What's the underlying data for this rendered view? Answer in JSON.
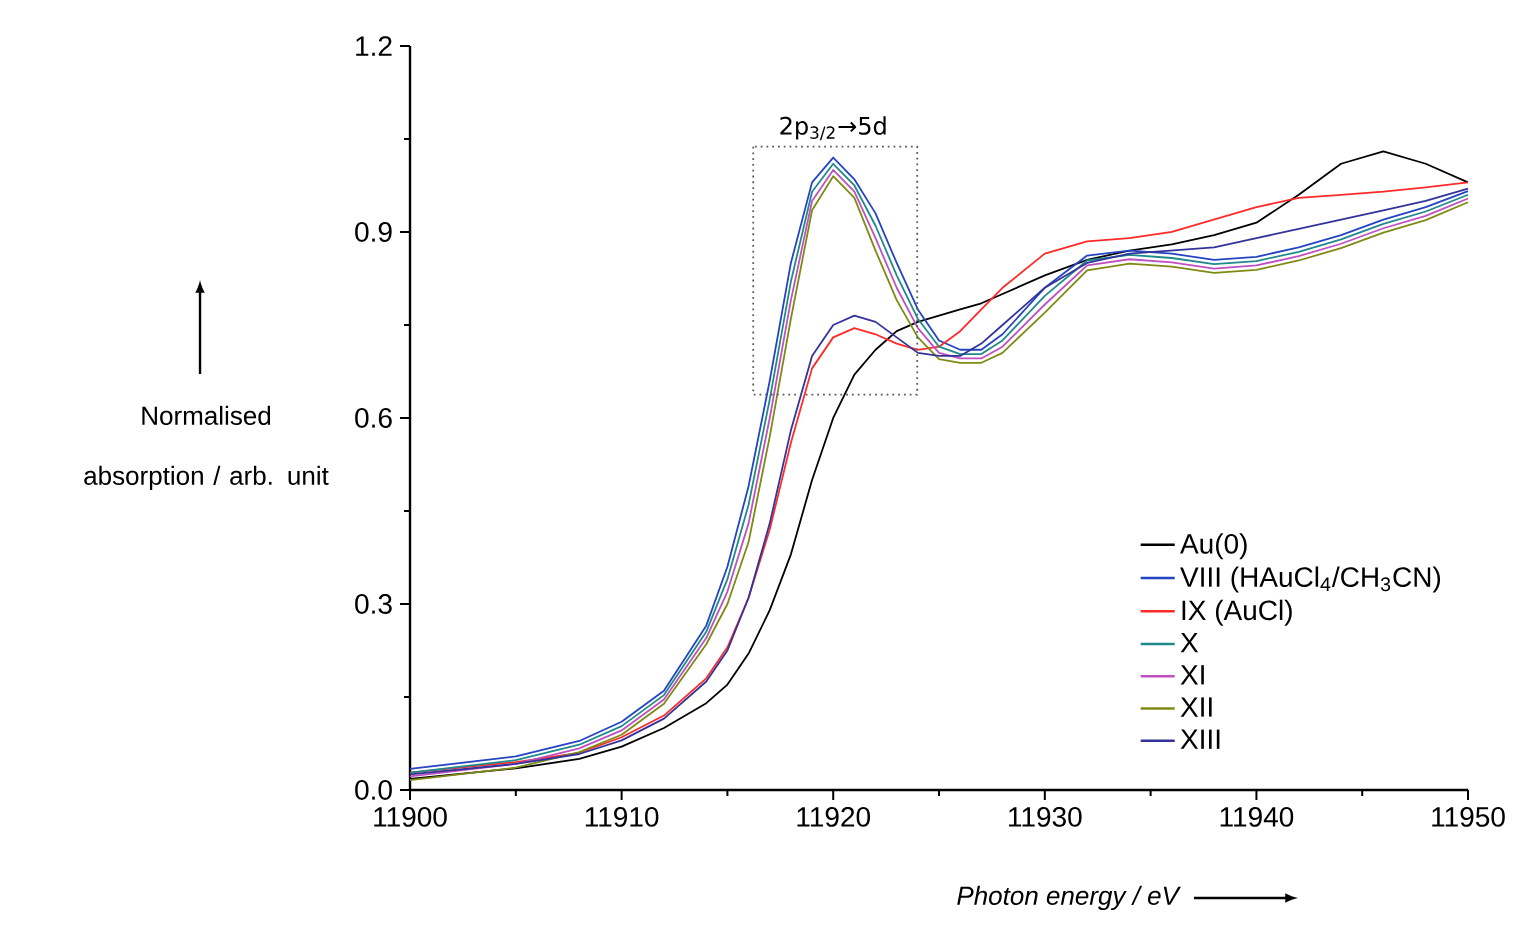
{
  "chart_data": {
    "type": "line",
    "xlabel": "Photon energy / eV",
    "ylabel": "Normalised absorption / arb. unit",
    "xlim": [
      11900,
      11950
    ],
    "ylim": [
      0,
      1.2
    ],
    "xticks": [
      11900,
      11910,
      11920,
      11930,
      11940,
      11950
    ],
    "yticks": [
      {
        "value": 0,
        "label": "0.0"
      },
      0.3,
      0.6,
      0.9,
      1.2
    ],
    "legend": "bottom right",
    "annotations": [
      "2p$_{3/2}$→5d"
    ],
    "x": [
      11900,
      11905,
      11908,
      11910,
      11912,
      11914,
      11915,
      11916,
      11917,
      11918,
      11919,
      11920,
      11921,
      11922,
      11923,
      11924,
      11925,
      11926,
      11927,
      11928,
      11930,
      11932,
      11934,
      11936,
      11938,
      11940,
      11942,
      11944,
      11946,
      11948,
      11950
    ],
    "series": [
      {
        "name": "Au(0)",
        "color": "#000000",
        "values": [
          0.018,
          0.035,
          0.05,
          0.07,
          0.1,
          0.14,
          0.17,
          0.22,
          0.29,
          0.38,
          0.5,
          0.6,
          0.67,
          0.71,
          0.74,
          0.755,
          0.765,
          0.775,
          0.785,
          0.8,
          0.83,
          0.855,
          0.87,
          0.88,
          0.895,
          0.915,
          0.96,
          1.01,
          1.03,
          1.01,
          0.98
        ]
      },
      {
        "name": "VIII (HAuCl$_{4}$/CH$_{3}$CN)",
        "color": "#2444c4",
        "values": [
          0.034,
          0.054,
          0.079,
          0.11,
          0.16,
          0.265,
          0.36,
          0.49,
          0.66,
          0.85,
          0.98,
          1.02,
          0.985,
          0.93,
          0.85,
          0.775,
          0.725,
          0.71,
          0.71,
          0.735,
          0.81,
          0.862,
          0.87,
          0.865,
          0.855,
          0.86,
          0.875,
          0.895,
          0.92,
          0.94,
          0.966
        ]
      },
      {
        "name": "IX (AuCl)",
        "color": "#ff2a2a",
        "values": [
          0.028,
          0.045,
          0.06,
          0.085,
          0.12,
          0.18,
          0.23,
          0.31,
          0.42,
          0.56,
          0.68,
          0.73,
          0.745,
          0.735,
          0.72,
          0.71,
          0.715,
          0.74,
          0.775,
          0.81,
          0.865,
          0.885,
          0.89,
          0.9,
          0.92,
          0.94,
          0.955,
          0.96,
          0.965,
          0.972,
          0.98
        ]
      },
      {
        "name": "X",
        "color": "#1f8a8a",
        "values": [
          0.028,
          0.048,
          0.073,
          0.103,
          0.153,
          0.255,
          0.34,
          0.46,
          0.63,
          0.82,
          0.965,
          1.01,
          0.975,
          0.91,
          0.83,
          0.76,
          0.715,
          0.703,
          0.703,
          0.725,
          0.797,
          0.854,
          0.863,
          0.858,
          0.848,
          0.853,
          0.868,
          0.888,
          0.913,
          0.933,
          0.96
        ]
      },
      {
        "name": "XI",
        "color": "#c050c0",
        "values": [
          0.022,
          0.042,
          0.067,
          0.096,
          0.146,
          0.245,
          0.32,
          0.43,
          0.6,
          0.79,
          0.95,
          1.0,
          0.965,
          0.89,
          0.81,
          0.745,
          0.705,
          0.696,
          0.696,
          0.715,
          0.783,
          0.846,
          0.856,
          0.851,
          0.841,
          0.846,
          0.861,
          0.881,
          0.906,
          0.926,
          0.954
        ]
      },
      {
        "name": "XII",
        "color": "#7f8a14",
        "values": [
          0.016,
          0.036,
          0.061,
          0.089,
          0.139,
          0.235,
          0.3,
          0.4,
          0.57,
          0.76,
          0.935,
          0.99,
          0.955,
          0.87,
          0.79,
          0.73,
          0.695,
          0.689,
          0.689,
          0.705,
          0.77,
          0.838,
          0.849,
          0.844,
          0.834,
          0.839,
          0.854,
          0.874,
          0.899,
          0.919,
          0.948
        ]
      },
      {
        "name": "XIII",
        "color": "#33339a",
        "values": [
          0.025,
          0.042,
          0.058,
          0.08,
          0.115,
          0.175,
          0.225,
          0.31,
          0.43,
          0.58,
          0.7,
          0.75,
          0.765,
          0.755,
          0.73,
          0.705,
          0.7,
          0.7,
          0.72,
          0.75,
          0.81,
          0.85,
          0.865,
          0.87,
          0.875,
          0.89,
          0.905,
          0.92,
          0.935,
          0.95,
          0.97
        ]
      }
    ]
  }
}
